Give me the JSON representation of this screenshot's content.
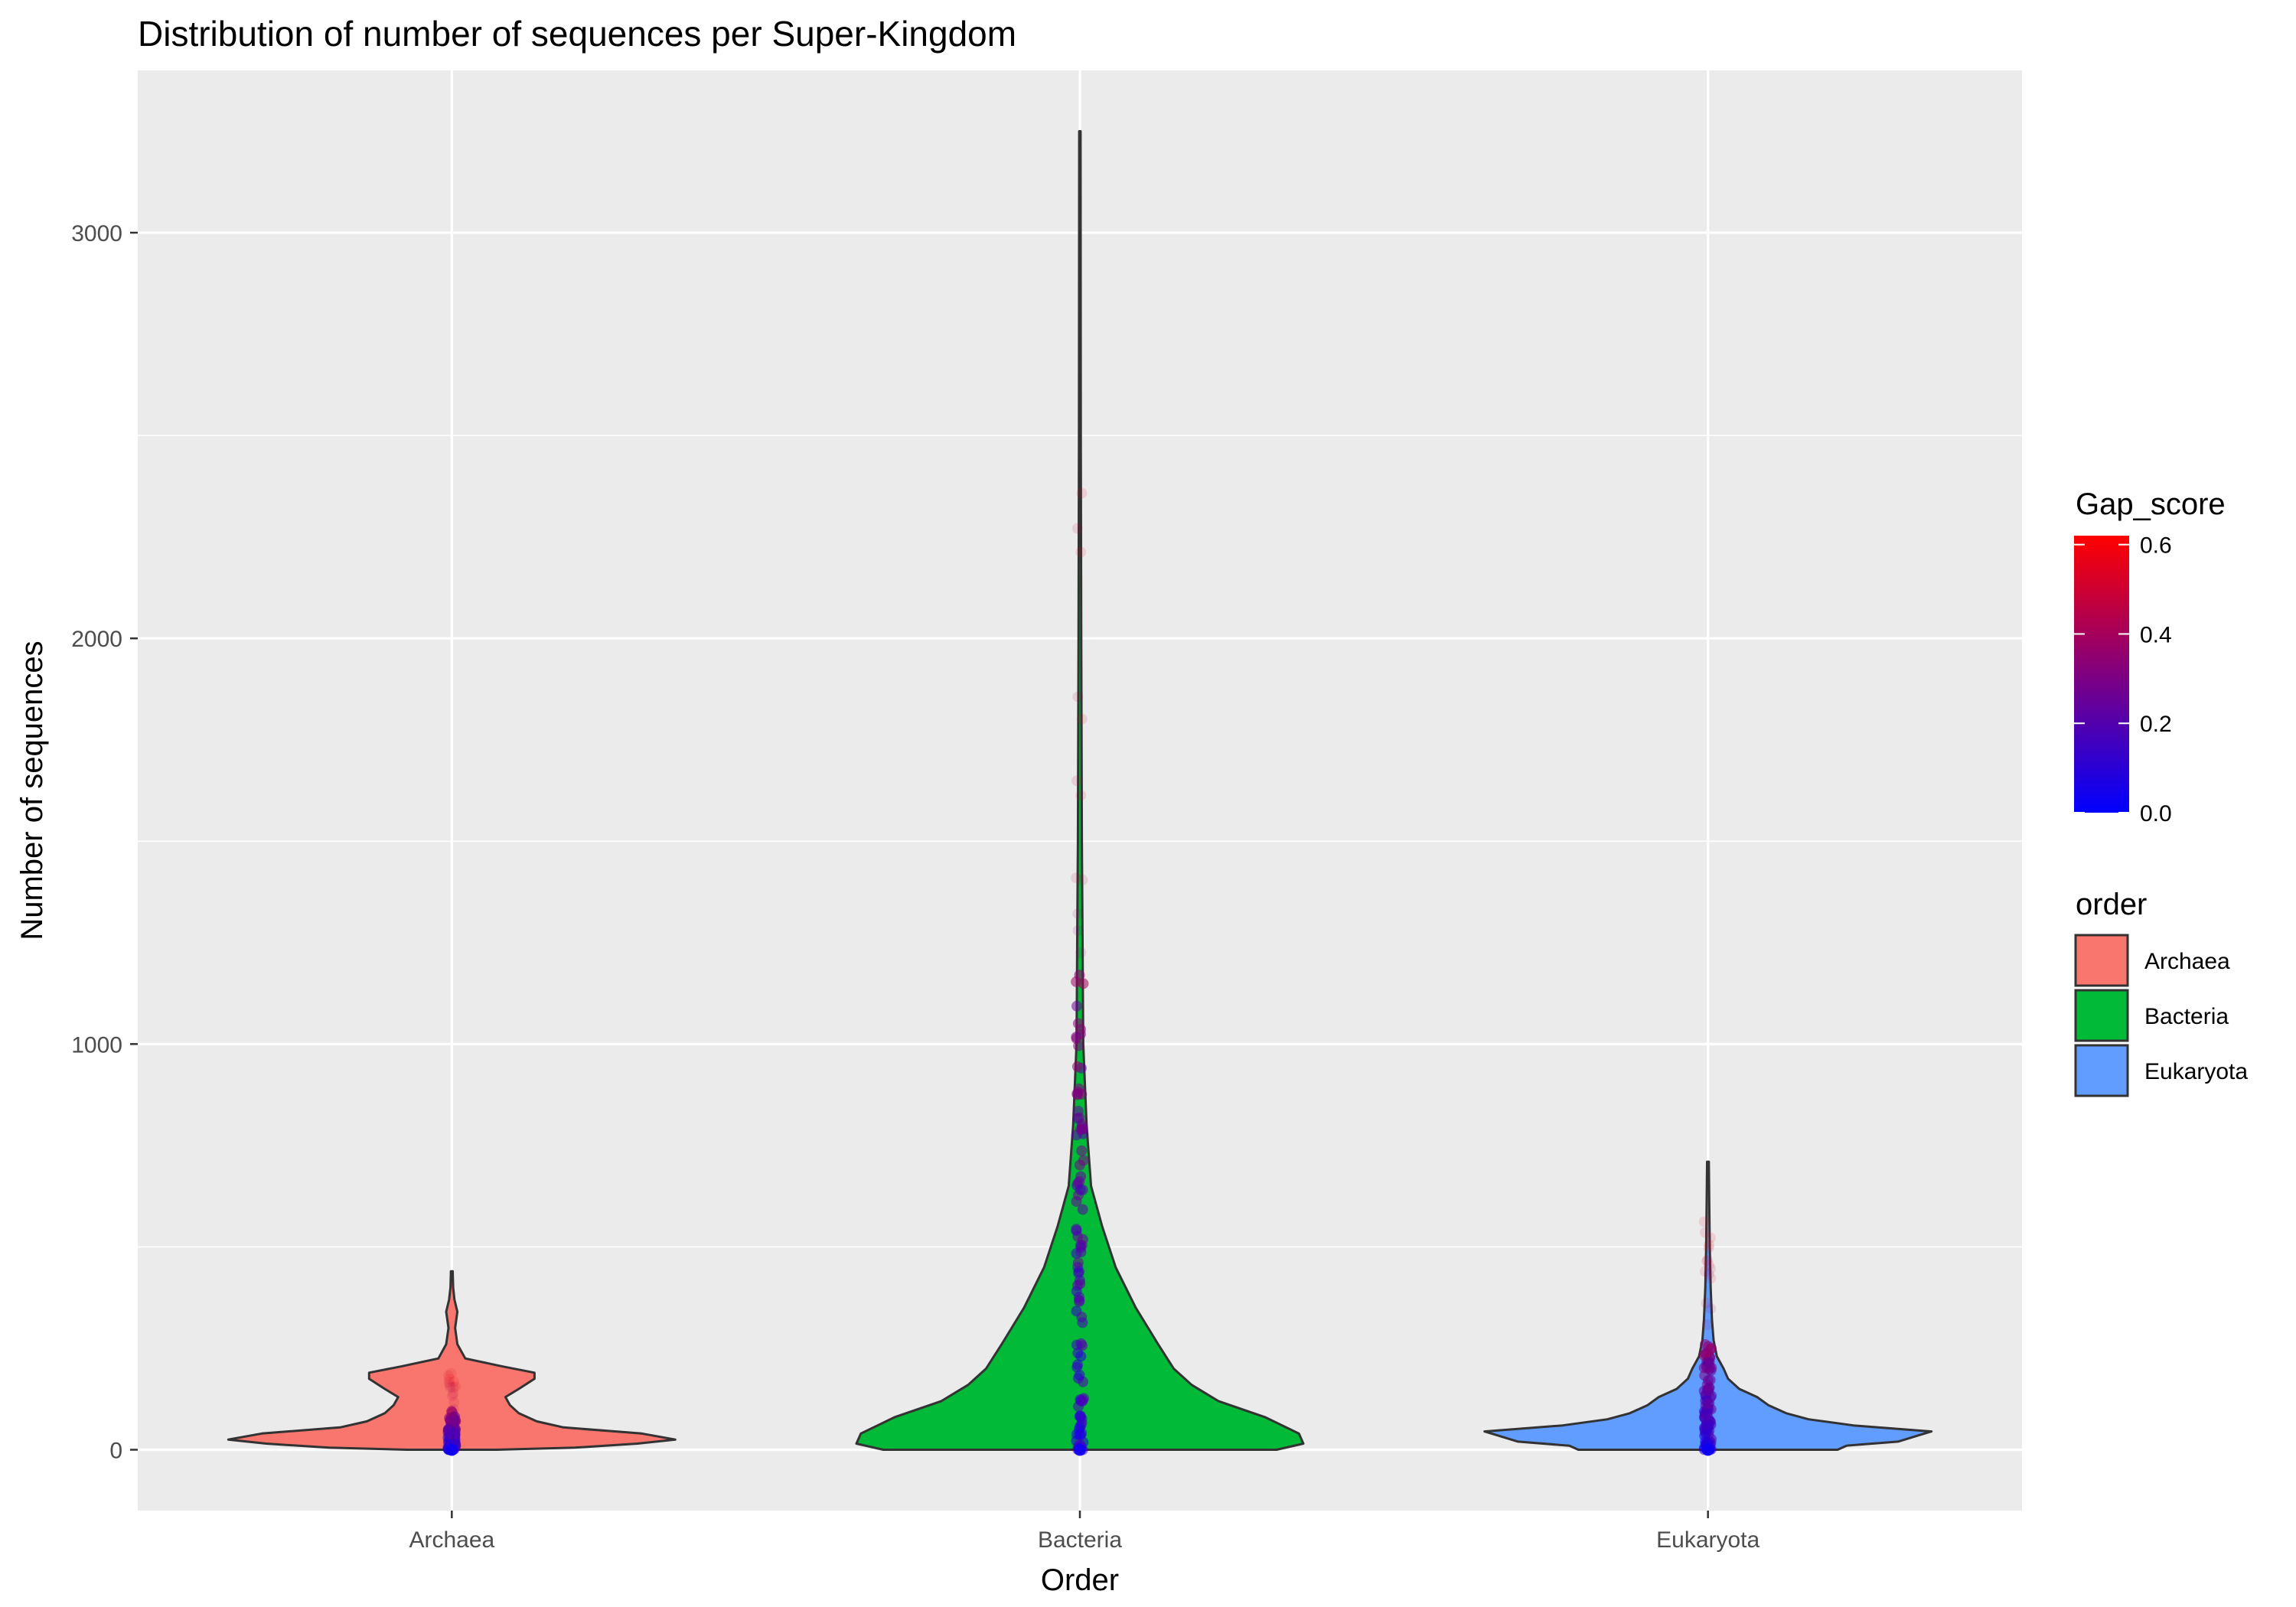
{
  "chart_data": {
    "type": "violin",
    "title": "Distribution of number of sequences per Super-Kingdom",
    "xlabel": "Order",
    "ylabel": "Number of sequences",
    "categories": [
      "Archaea",
      "Bacteria",
      "Eukaryota"
    ],
    "ylim": [
      -150,
      3400
    ],
    "yticks": [
      0,
      1000,
      2000,
      3000
    ],
    "ytick_labels": [
      "0",
      "1000",
      "2000",
      "3000"
    ],
    "grid": true,
    "series": [
      {
        "name": "Archaea",
        "color": "#F8766D",
        "max": 440,
        "points_max": 190,
        "profile": [
          [
            0,
            0.2
          ],
          [
            5,
            0.55
          ],
          [
            15,
            0.83
          ],
          [
            25,
            1.0
          ],
          [
            40,
            0.85
          ],
          [
            55,
            0.5
          ],
          [
            70,
            0.38
          ],
          [
            90,
            0.3
          ],
          [
            110,
            0.26
          ],
          [
            130,
            0.24
          ],
          [
            150,
            0.3
          ],
          [
            175,
            0.37
          ],
          [
            190,
            0.37
          ],
          [
            205,
            0.23
          ],
          [
            225,
            0.06
          ],
          [
            260,
            0.025
          ],
          [
            300,
            0.015
          ],
          [
            340,
            0.025
          ],
          [
            370,
            0.012
          ],
          [
            400,
            0.006
          ],
          [
            440,
            0.004
          ]
        ]
      },
      {
        "name": "Bacteria",
        "color": "#00BA38",
        "max": 3250,
        "points_max": 2450,
        "profile": [
          [
            0,
            0.88
          ],
          [
            15,
            1.0
          ],
          [
            40,
            0.98
          ],
          [
            80,
            0.83
          ],
          [
            120,
            0.62
          ],
          [
            160,
            0.5
          ],
          [
            200,
            0.42
          ],
          [
            260,
            0.35
          ],
          [
            350,
            0.25
          ],
          [
            450,
            0.16
          ],
          [
            550,
            0.1
          ],
          [
            650,
            0.05
          ],
          [
            800,
            0.03
          ],
          [
            1000,
            0.015
          ],
          [
            1500,
            0.009
          ],
          [
            2000,
            0.006
          ],
          [
            2500,
            0.004
          ],
          [
            3250,
            0.003
          ]
        ]
      },
      {
        "name": "Eukaryota",
        "color": "#619CFF",
        "max": 710,
        "points_max": 580,
        "profile": [
          [
            0,
            0.58
          ],
          [
            10,
            0.62
          ],
          [
            20,
            0.85
          ],
          [
            30,
            0.91
          ],
          [
            45,
            1.0
          ],
          [
            60,
            0.65
          ],
          [
            75,
            0.45
          ],
          [
            90,
            0.35
          ],
          [
            110,
            0.27
          ],
          [
            130,
            0.22
          ],
          [
            150,
            0.14
          ],
          [
            175,
            0.09
          ],
          [
            200,
            0.07
          ],
          [
            230,
            0.04
          ],
          [
            270,
            0.025
          ],
          [
            320,
            0.018
          ],
          [
            400,
            0.012
          ],
          [
            500,
            0.008
          ],
          [
            600,
            0.006
          ],
          [
            710,
            0.004
          ]
        ]
      }
    ],
    "color_scale": {
      "title": "Gap_score",
      "min": 0,
      "max": 0.62,
      "low_color": "#0000FF",
      "high_color": "#FF0000",
      "ticks": [
        0,
        0.2,
        0.4,
        0.6
      ],
      "tick_labels": [
        "0.0",
        "0.2",
        "0.4",
        "0.6"
      ]
    },
    "fill_legend": {
      "title": "order",
      "entries": [
        "Archaea",
        "Bacteria",
        "Eukaryota"
      ]
    }
  }
}
